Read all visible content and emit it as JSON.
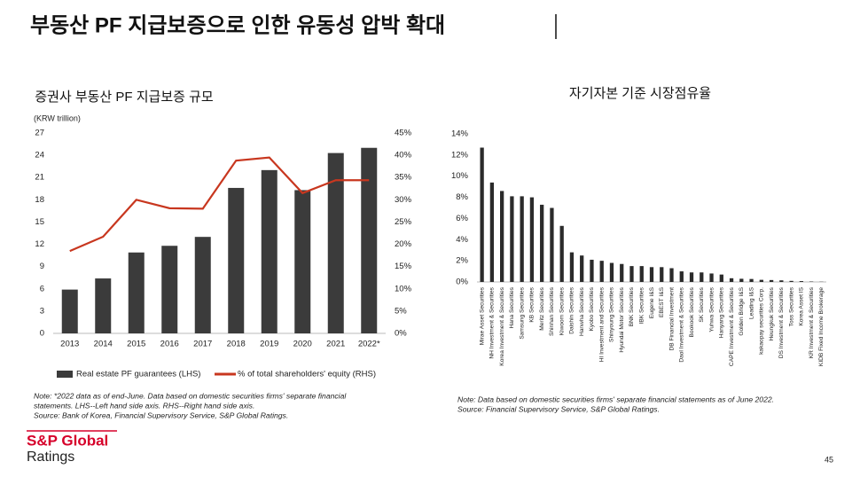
{
  "page": {
    "title": "부동산 PF 지급보증으로 인한 유동성 압박 확대",
    "logo": [
      "S&P Global",
      "Ratings"
    ],
    "page_number": "45"
  },
  "chart_data": [
    {
      "type": "bar",
      "title": "증권사 부동산 PF 지급보증 규모",
      "ylabel": "(KRW trillion)",
      "categories": [
        "2013",
        "2014",
        "2015",
        "2016",
        "2017",
        "2018",
        "2019",
        "2020",
        "2021",
        "2022*"
      ],
      "series": [
        {
          "name": "Real estate PF guarantees (LHS)",
          "type": "bar",
          "color": "#3b3b3b",
          "values": [
            5.9,
            7.4,
            10.9,
            11.8,
            13.0,
            19.6,
            22.0,
            19.3,
            24.3,
            25.0
          ]
        },
        {
          "name": "% of total shareholders' equity (RHS)",
          "type": "line",
          "axis": "y2",
          "color": "#c8371f",
          "values": [
            18.5,
            21.7,
            30.0,
            28.1,
            28.0,
            38.8,
            39.5,
            31.5,
            34.4,
            34.4
          ]
        }
      ],
      "ylim": [
        0,
        27
      ],
      "yticks": [
        0,
        3,
        6,
        9,
        12,
        15,
        18,
        21,
        24,
        27
      ],
      "y2lim": [
        0,
        45
      ],
      "y2ticks": [
        {
          "value": 0,
          "label": "0%"
        },
        {
          "value": 5,
          "label": "5%"
        },
        {
          "value": 10,
          "label": "10%"
        },
        {
          "value": 15,
          "label": "15%"
        },
        {
          "value": 20,
          "label": "20%"
        },
        {
          "value": 25,
          "label": "25%"
        },
        {
          "value": 30,
          "label": "30%"
        },
        {
          "value": 35,
          "label": "35%"
        },
        {
          "value": 40,
          "label": "40%"
        },
        {
          "value": 45,
          "label": "45%"
        }
      ],
      "legend": "bottom",
      "notes": [
        "Note: *2022 data as of end-June. Data based on domestic securities firms' separate financial",
        "statements. LHS--Left hand side axis. RHS--Right hand side axis.",
        "Source: Bank of Korea, Financial Supervisory Service, S&P Global Ratings."
      ]
    },
    {
      "type": "bar",
      "title": "자기자본 기준 시장점유율",
      "color": "#2b2b2b",
      "categories": [
        "Mirae Asset Securities",
        "NH Investment & Securities",
        "Korea Investment & Securities",
        "Hana Securities",
        "Samsung Securities",
        "KB Securities",
        "Meritz Securities",
        "Shinhan Securities",
        "Kiwoom Securities",
        "Daishin Securities",
        "Hanwha Securities",
        "Kyobo Securities",
        "HI Investment and Securities",
        "Shinyoung Securities",
        "Hyundai Motor Securities",
        "BNK Securities",
        "IBK Securities",
        "Eugene I&S",
        "EBEST I&S",
        "DB Financial Investment",
        "Daol Investment & Securities",
        "Bookook Securities",
        "SK Securities",
        "Yuhwa Securities",
        "Hanyang Securities",
        "CAPE Investment & Securities",
        "Golden Bridge I&S",
        "Leading I&S",
        "kakaopay securities Corp.",
        "Heungkuk Securities",
        "DS Investment & Securities",
        "Toss Securities",
        "Korea Asset IS",
        "KR Investment & Securities",
        "KIDB Fixed Income Brokerage"
      ],
      "values": [
        12.7,
        9.4,
        8.6,
        8.1,
        8.1,
        8.0,
        7.3,
        7.0,
        5.3,
        2.8,
        2.5,
        2.1,
        2.0,
        1.8,
        1.7,
        1.5,
        1.5,
        1.4,
        1.4,
        1.3,
        1.0,
        0.9,
        0.9,
        0.8,
        0.7,
        0.35,
        0.3,
        0.28,
        0.2,
        0.18,
        0.15,
        0.1,
        0.08,
        0.04,
        0.02
      ],
      "ylim": [
        0,
        14
      ],
      "yticks": [
        {
          "value": 0,
          "label": "0%"
        },
        {
          "value": 2,
          "label": "2%"
        },
        {
          "value": 4,
          "label": "4%"
        },
        {
          "value": 6,
          "label": "6%"
        },
        {
          "value": 8,
          "label": "8%"
        },
        {
          "value": 10,
          "label": "10%"
        },
        {
          "value": 12,
          "label": "12%"
        },
        {
          "value": 14,
          "label": "14%"
        }
      ],
      "notes": [
        "Note: Data based on domestic securities firms' separate financial statements as of June 2022.",
        "Source: Financial Supervisory Service, S&P Global Ratings."
      ]
    }
  ]
}
